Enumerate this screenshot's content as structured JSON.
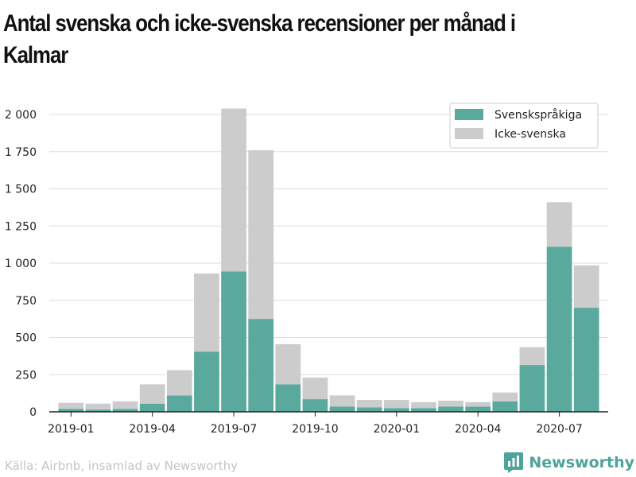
{
  "title": "Antal svenska och icke-svenska recensioner per månad i Kalmar",
  "source": "Källa: Airbnb, insamlad av Newsworthy",
  "brand": {
    "name": "Newsworthy",
    "icon": "newsworthy-logo-icon"
  },
  "colors": {
    "swedish": "#5aa99d",
    "non_swedish": "#cccccc",
    "grid": "#dddddd",
    "axis": "#222222"
  },
  "chart_data": {
    "type": "bar",
    "stacked": true,
    "categories": [
      "2019-01",
      "2019-02",
      "2019-03",
      "2019-04",
      "2019-05",
      "2019-06",
      "2019-07",
      "2019-08",
      "2019-09",
      "2019-10",
      "2019-11",
      "2019-12",
      "2020-01",
      "2020-02",
      "2020-03",
      "2020-04",
      "2020-05",
      "2020-06",
      "2020-07",
      "2020-08"
    ],
    "x_tick_labels": [
      "2019-01",
      "2019-04",
      "2019-07",
      "2019-10",
      "2020-01",
      "2020-04",
      "2020-07"
    ],
    "series": [
      {
        "name": "Svenskspråkiga",
        "color": "#5aa99d",
        "values": [
          20,
          15,
          20,
          55,
          110,
          405,
          945,
          625,
          185,
          85,
          35,
          30,
          25,
          25,
          35,
          35,
          70,
          315,
          1110,
          700
        ]
      },
      {
        "name": "Icke-svenska",
        "color": "#cccccc",
        "values": [
          40,
          40,
          50,
          130,
          170,
          525,
          1095,
          1135,
          270,
          145,
          75,
          50,
          55,
          40,
          40,
          30,
          60,
          120,
          300,
          285
        ]
      }
    ],
    "ylim": [
      0,
      2000
    ],
    "y_ticks": [
      0,
      250,
      500,
      750,
      1000,
      1250,
      1500,
      1750,
      2000
    ],
    "y_tick_labels": [
      "0",
      "250",
      "500",
      "750",
      "1 000",
      "1 250",
      "1 500",
      "1 750",
      "2 000"
    ],
    "grid": "horizontal",
    "legend_position": "top-right"
  }
}
